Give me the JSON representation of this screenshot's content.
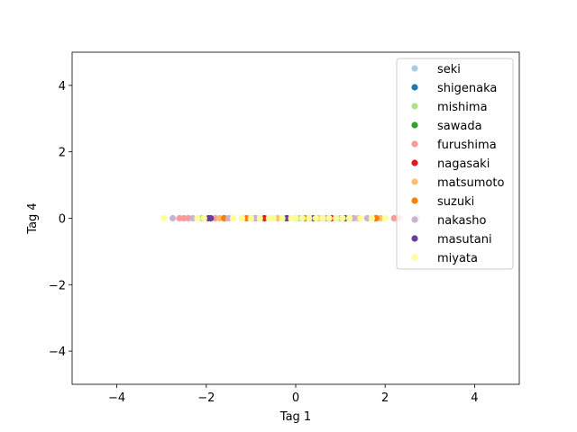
{
  "chart_data": {
    "type": "scatter",
    "xlabel": "Tag 1",
    "ylabel": "Tag 4",
    "xlim": [
      -5,
      5
    ],
    "ylim": [
      -5,
      5
    ],
    "xticks": [
      -4,
      -2,
      0,
      2,
      4
    ],
    "yticks": [
      -4,
      -2,
      0,
      2,
      4
    ],
    "xtick_labels": [
      "−4",
      "−2",
      "0",
      "2",
      "4"
    ],
    "ytick_labels": [
      "−4",
      "−2",
      "0",
      "2",
      "4"
    ],
    "grid": false,
    "legend_position": "top-right",
    "series": [
      {
        "name": "seki",
        "color": "#a6cee3",
        "x": [
          -1.2,
          -0.6,
          0.1,
          0.5,
          0.9,
          1.3
        ],
        "y": [
          0,
          0,
          0,
          0,
          0,
          0
        ]
      },
      {
        "name": "shigenaka",
        "color": "#1f78b4",
        "x": [
          -0.9,
          -0.2,
          0.3,
          0.7,
          1.1
        ],
        "y": [
          0,
          0,
          0,
          0,
          0
        ]
      },
      {
        "name": "mishima",
        "color": "#b2df8a",
        "x": [
          -2.1,
          -1.4,
          -0.5,
          0.4,
          1.0
        ],
        "y": [
          0,
          0,
          0,
          0,
          0
        ]
      },
      {
        "name": "sawada",
        "color": "#33a02c",
        "x": [
          -1.0,
          -0.3,
          0.2,
          0.6,
          1.2
        ],
        "y": [
          0,
          0,
          0,
          0,
          0
        ]
      },
      {
        "name": "furushima",
        "color": "#fb9a99",
        "x": [
          -2.6,
          -2.5,
          -2.4,
          -1.8,
          -0.8,
          0.9,
          2.2,
          2.3
        ],
        "y": [
          0,
          0,
          0,
          0,
          0,
          0,
          0,
          0
        ]
      },
      {
        "name": "nagasaki",
        "color": "#e31a1c",
        "x": [
          -1.6,
          -0.7,
          0.0,
          0.8,
          1.8
        ],
        "y": [
          0,
          0,
          0,
          0,
          0
        ]
      },
      {
        "name": "matsumoto",
        "color": "#fdbf6f",
        "x": [
          -1.7,
          -0.4,
          0.5,
          1.4,
          1.9
        ],
        "y": [
          0,
          0,
          0,
          0,
          0
        ]
      },
      {
        "name": "suzuki",
        "color": "#ff7f00",
        "x": [
          -1.6,
          -1.1,
          0.2,
          0.6,
          1.8
        ],
        "y": [
          0,
          0,
          0,
          0,
          0
        ]
      },
      {
        "name": "nakasho",
        "color": "#cab2d6",
        "x": [
          -2.75,
          -2.3,
          -1.5,
          -0.9,
          0.0,
          0.7,
          1.3,
          1.6,
          2.7
        ],
        "y": [
          0,
          0,
          0,
          0,
          0,
          0,
          0,
          0,
          0
        ]
      },
      {
        "name": "masutani",
        "color": "#6a3d9a",
        "x": [
          -1.95,
          -1.9,
          -0.2,
          0.4,
          1.1
        ],
        "y": [
          0,
          0,
          0,
          0,
          0
        ]
      },
      {
        "name": "miyata",
        "color": "#ffff99",
        "x": [
          -2.95,
          -2.2,
          -2.05,
          -1.4,
          -1.2,
          -1.0,
          -0.8,
          -0.6,
          -0.5,
          -0.3,
          -0.1,
          0.0,
          0.15,
          0.3,
          0.45,
          0.6,
          0.75,
          0.9,
          1.05,
          1.2,
          1.45,
          1.7,
          2.0
        ],
        "y": [
          0,
          0,
          0,
          0,
          0,
          0,
          0,
          0,
          0,
          0,
          0,
          0,
          0,
          0,
          0,
          0,
          0,
          0,
          0,
          0,
          0,
          0,
          0
        ]
      }
    ]
  }
}
